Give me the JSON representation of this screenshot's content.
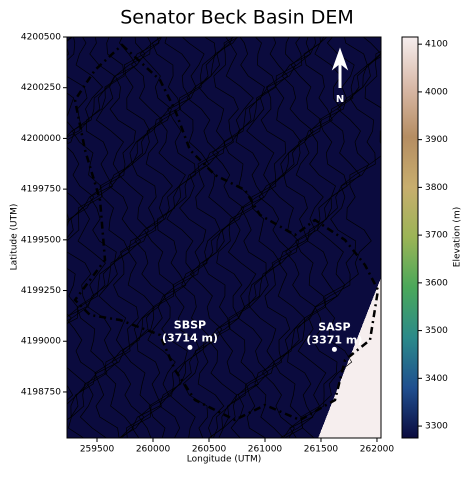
{
  "chart_data": {
    "type": "contour",
    "title": "Senator Beck Basin DEM",
    "x_label": "Longitude (UTM)",
    "y_label": "Latitude (UTM)",
    "xlim": [
      259232,
      262036
    ],
    "ylim": [
      4198523,
      4200500
    ],
    "xticks": [
      259500,
      260000,
      260500,
      261000,
      261500,
      262000
    ],
    "yticks": [
      4198750,
      4199000,
      4199250,
      4199500,
      4199750,
      4200000,
      4200250,
      4200500
    ],
    "colorbar": {
      "label": "Elevation (m)",
      "lim": [
        3275,
        4115
      ],
      "ticks": [
        3300,
        3400,
        3500,
        3600,
        3700,
        3800,
        3900,
        4000,
        4100
      ],
      "colors": [
        "#0b0b3e",
        "#1f4f8f",
        "#2b8a8a",
        "#4aa85a",
        "#9bb456",
        "#c8ae6e",
        "#b58d62",
        "#d9b9a8",
        "#f6eeee"
      ]
    },
    "north_label": "N",
    "annotations": [
      {
        "lines": [
          "SBSP",
          "(3714 m)"
        ],
        "x": 260330,
        "y": 4198970
      },
      {
        "lines": [
          "SASP",
          "(3371 m)"
        ],
        "x": 261620,
        "y": 4198960
      }
    ]
  }
}
